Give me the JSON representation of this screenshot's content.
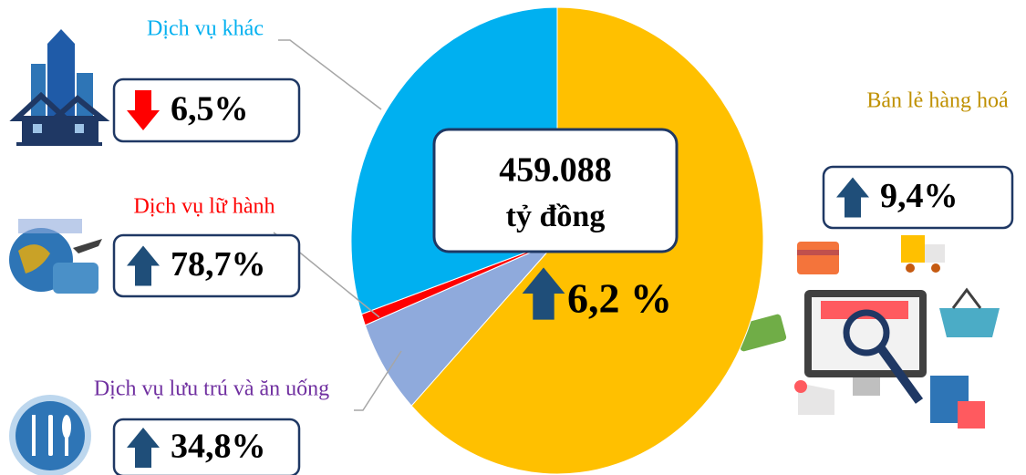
{
  "chart_data": {
    "type": "pie",
    "categories": [
      "Bán lẻ hàng hoá",
      "Dịch vụ lưu trú và ăn uống",
      "Dịch vụ lữ hành",
      "Dịch vụ khác"
    ],
    "values": [
      62.5,
      6.6,
      0.8,
      30.1
    ],
    "colors": [
      "#FFC000",
      "#8FAADC",
      "#FF0000",
      "#00B0F0"
    ],
    "label_colors": [
      "#BF9000",
      "#7030A0",
      "#FF0000",
      "#00B0F0"
    ],
    "growth": [
      {
        "value": 9.4,
        "label": "9,4%",
        "direction": "up"
      },
      {
        "value": 34.8,
        "label": "34,8%",
        "direction": "up"
      },
      {
        "value": 78.7,
        "label": "78,7%",
        "direction": "up"
      },
      {
        "value": 6.5,
        "label": "6,5%",
        "direction": "down"
      }
    ],
    "total": {
      "value": 459088,
      "label": "459.088"
    },
    "total_unit": "tỷ đồng",
    "total_growth": {
      "value": 6.2,
      "label": "6,2 %",
      "direction": "up"
    }
  }
}
